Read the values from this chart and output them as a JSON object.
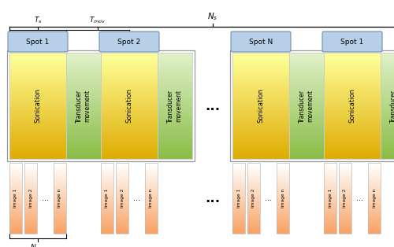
{
  "sono_label": "Sonication",
  "trans_label": "Transducer\nmovement",
  "spot_color": "#b8cfe8",
  "spot_border": "#7090b0",
  "sono_color_top": "#ffff99",
  "sono_color_bot": "#ddaa00",
  "trans_color_top": "#dff0c8",
  "trans_color_bot": "#88bb44",
  "img_color_top": "#f8a060",
  "img_color_bot": "#ffffff",
  "outer_border": "#aaaaaa",
  "background": "#ffffff",
  "ellipsis": "...",
  "spots_left": [
    "Spot 1",
    "Spot 2"
  ],
  "spots_right": [
    "Spot N",
    "Spot 1"
  ],
  "img_labels": [
    "Image 1",
    "Image 2",
    "Image n"
  ]
}
